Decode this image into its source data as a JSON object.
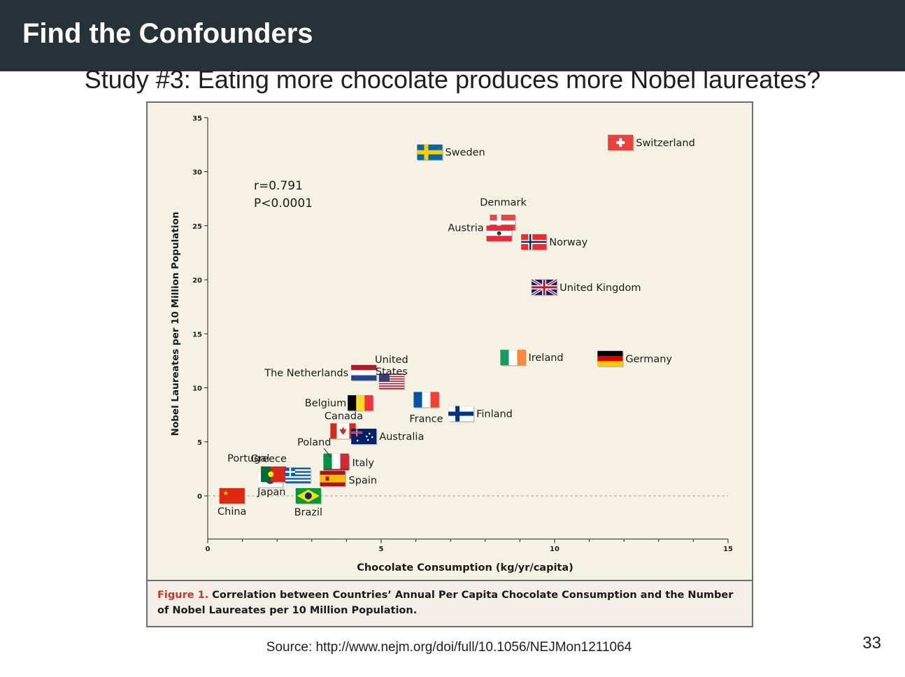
{
  "slide": {
    "title": "Find the Confounders",
    "subtitle": "Study #3: Eating more chocolate produces more Nobel laureates?",
    "source": "Source: http://www.nejm.org/doi/full/10.1056/NEJMon1211064",
    "page_number": "33"
  },
  "figure_caption": {
    "label": "Figure 1.",
    "text": "Correlation between Countries’ Annual Per Capita Chocolate Consumption and the Number of Nobel Laureates per 10 Million Population."
  },
  "chart_data": {
    "type": "scatter",
    "title": "",
    "xlabel": "Chocolate Consumption (kg/yr/capita)",
    "ylabel": "Nobel Laureates per 10 Million Population",
    "xlim": [
      0,
      15
    ],
    "ylim": [
      -4,
      35
    ],
    "xticks": [
      0,
      5,
      10,
      15
    ],
    "yticks": [
      0,
      5,
      10,
      15,
      20,
      25,
      30,
      35
    ],
    "x_ticks_labels": [
      "0",
      "5",
      "10",
      "15"
    ],
    "y_ticks_labels": [
      "0",
      "5",
      "10",
      "15",
      "20",
      "25",
      "30",
      "35"
    ],
    "annotation": [
      "r=0.791",
      "P<0.0001"
    ],
    "reference_line_y": 0,
    "grid": false,
    "points": [
      {
        "country": "China",
        "label": "China",
        "x": 0.7,
        "y": 0.0,
        "flag": "china"
      },
      {
        "country": "Japan",
        "label": "Japan",
        "x": 1.8,
        "y": 1.5,
        "flag": "japan"
      },
      {
        "country": "Portugal",
        "label": "Portugal",
        "x": 1.9,
        "y": 2.0,
        "flag": "portugal"
      },
      {
        "country": "Brazil",
        "label": "Brazil",
        "x": 2.9,
        "y": 0.0,
        "flag": "brazil"
      },
      {
        "country": "Greece",
        "label": "Greece",
        "x": 2.6,
        "y": 1.9,
        "flag": "greece"
      },
      {
        "country": "Poland",
        "label": "Poland",
        "x": 3.7,
        "y": 3.1,
        "flag": "poland"
      },
      {
        "country": "Italy",
        "label": "Italy",
        "x": 3.7,
        "y": 3.2,
        "flag": "italy"
      },
      {
        "country": "Spain",
        "label": "Spain",
        "x": 3.6,
        "y": 1.6,
        "flag": "spain"
      },
      {
        "country": "Canada",
        "label": "Canada",
        "x": 3.9,
        "y": 6.0,
        "flag": "canada"
      },
      {
        "country": "Australia",
        "label": "Australia",
        "x": 4.5,
        "y": 5.5,
        "flag": "australia"
      },
      {
        "country": "Belgium",
        "label": "Belgium",
        "x": 4.4,
        "y": 8.6,
        "flag": "belgium"
      },
      {
        "country": "The Netherlands",
        "label": "The Netherlands",
        "x": 4.5,
        "y": 11.4,
        "flag": "netherlands"
      },
      {
        "country": "United States",
        "label": "United States",
        "x": 5.3,
        "y": 10.6,
        "flag": "usa"
      },
      {
        "country": "France",
        "label": "France",
        "x": 6.3,
        "y": 8.9,
        "flag": "france"
      },
      {
        "country": "Finland",
        "label": "Finland",
        "x": 7.3,
        "y": 7.6,
        "flag": "finland"
      },
      {
        "country": "Sweden",
        "label": "Sweden",
        "x": 6.4,
        "y": 31.8,
        "flag": "sweden"
      },
      {
        "country": "Switzerland",
        "label": "Switzerland",
        "x": 11.9,
        "y": 32.7,
        "flag": "switzerland"
      },
      {
        "country": "Denmark",
        "label": "Denmark",
        "x": 8.5,
        "y": 25.3,
        "flag": "denmark"
      },
      {
        "country": "Austria",
        "label": "Austria",
        "x": 8.4,
        "y": 24.3,
        "flag": "austria"
      },
      {
        "country": "Norway",
        "label": "Norway",
        "x": 9.4,
        "y": 23.5,
        "flag": "norway"
      },
      {
        "country": "United Kingdom",
        "label": "United Kingdom",
        "x": 9.7,
        "y": 19.3,
        "flag": "uk"
      },
      {
        "country": "Ireland",
        "label": "Ireland",
        "x": 8.8,
        "y": 12.8,
        "flag": "ireland"
      },
      {
        "country": "Germany",
        "label": "Germany",
        "x": 11.6,
        "y": 12.7,
        "flag": "germany"
      }
    ]
  }
}
